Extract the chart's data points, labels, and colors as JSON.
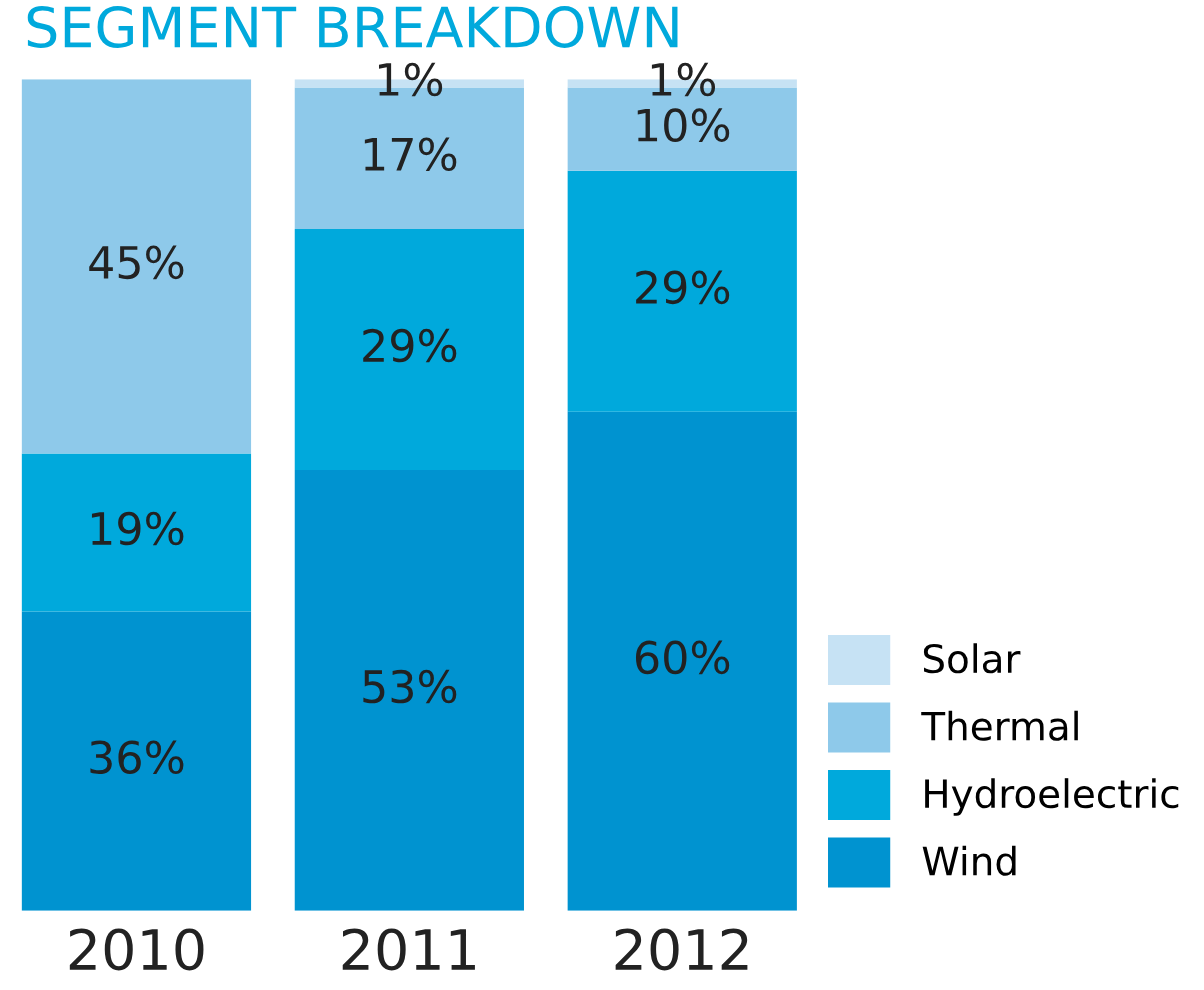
{
  "chart_data": {
    "type": "bar",
    "title": "SEGMENT BREAKDOWN",
    "categories": [
      "2010",
      "2011",
      "2012"
    ],
    "stacked": true,
    "legend": "bottom right",
    "grid": false,
    "series": [
      {
        "name": "Wind",
        "color": "#0093d0",
        "values": [
          36,
          53,
          60
        ],
        "value_labels": [
          "36%",
          "53%",
          "60%"
        ]
      },
      {
        "name": "Hydroelectric",
        "color": "#00a9dc",
        "values": [
          19,
          29,
          29
        ],
        "value_labels": [
          "19%",
          "29%",
          "29%"
        ]
      },
      {
        "name": "Thermal",
        "color": "#8ec9ea",
        "values": [
          45,
          17,
          10
        ],
        "value_labels": [
          "45%",
          "17%",
          "10%"
        ]
      },
      {
        "name": "Solar",
        "color": "#c6e2f4",
        "values": [
          null,
          1,
          1
        ],
        "value_labels": [
          null,
          "1%",
          "1%"
        ]
      }
    ]
  }
}
